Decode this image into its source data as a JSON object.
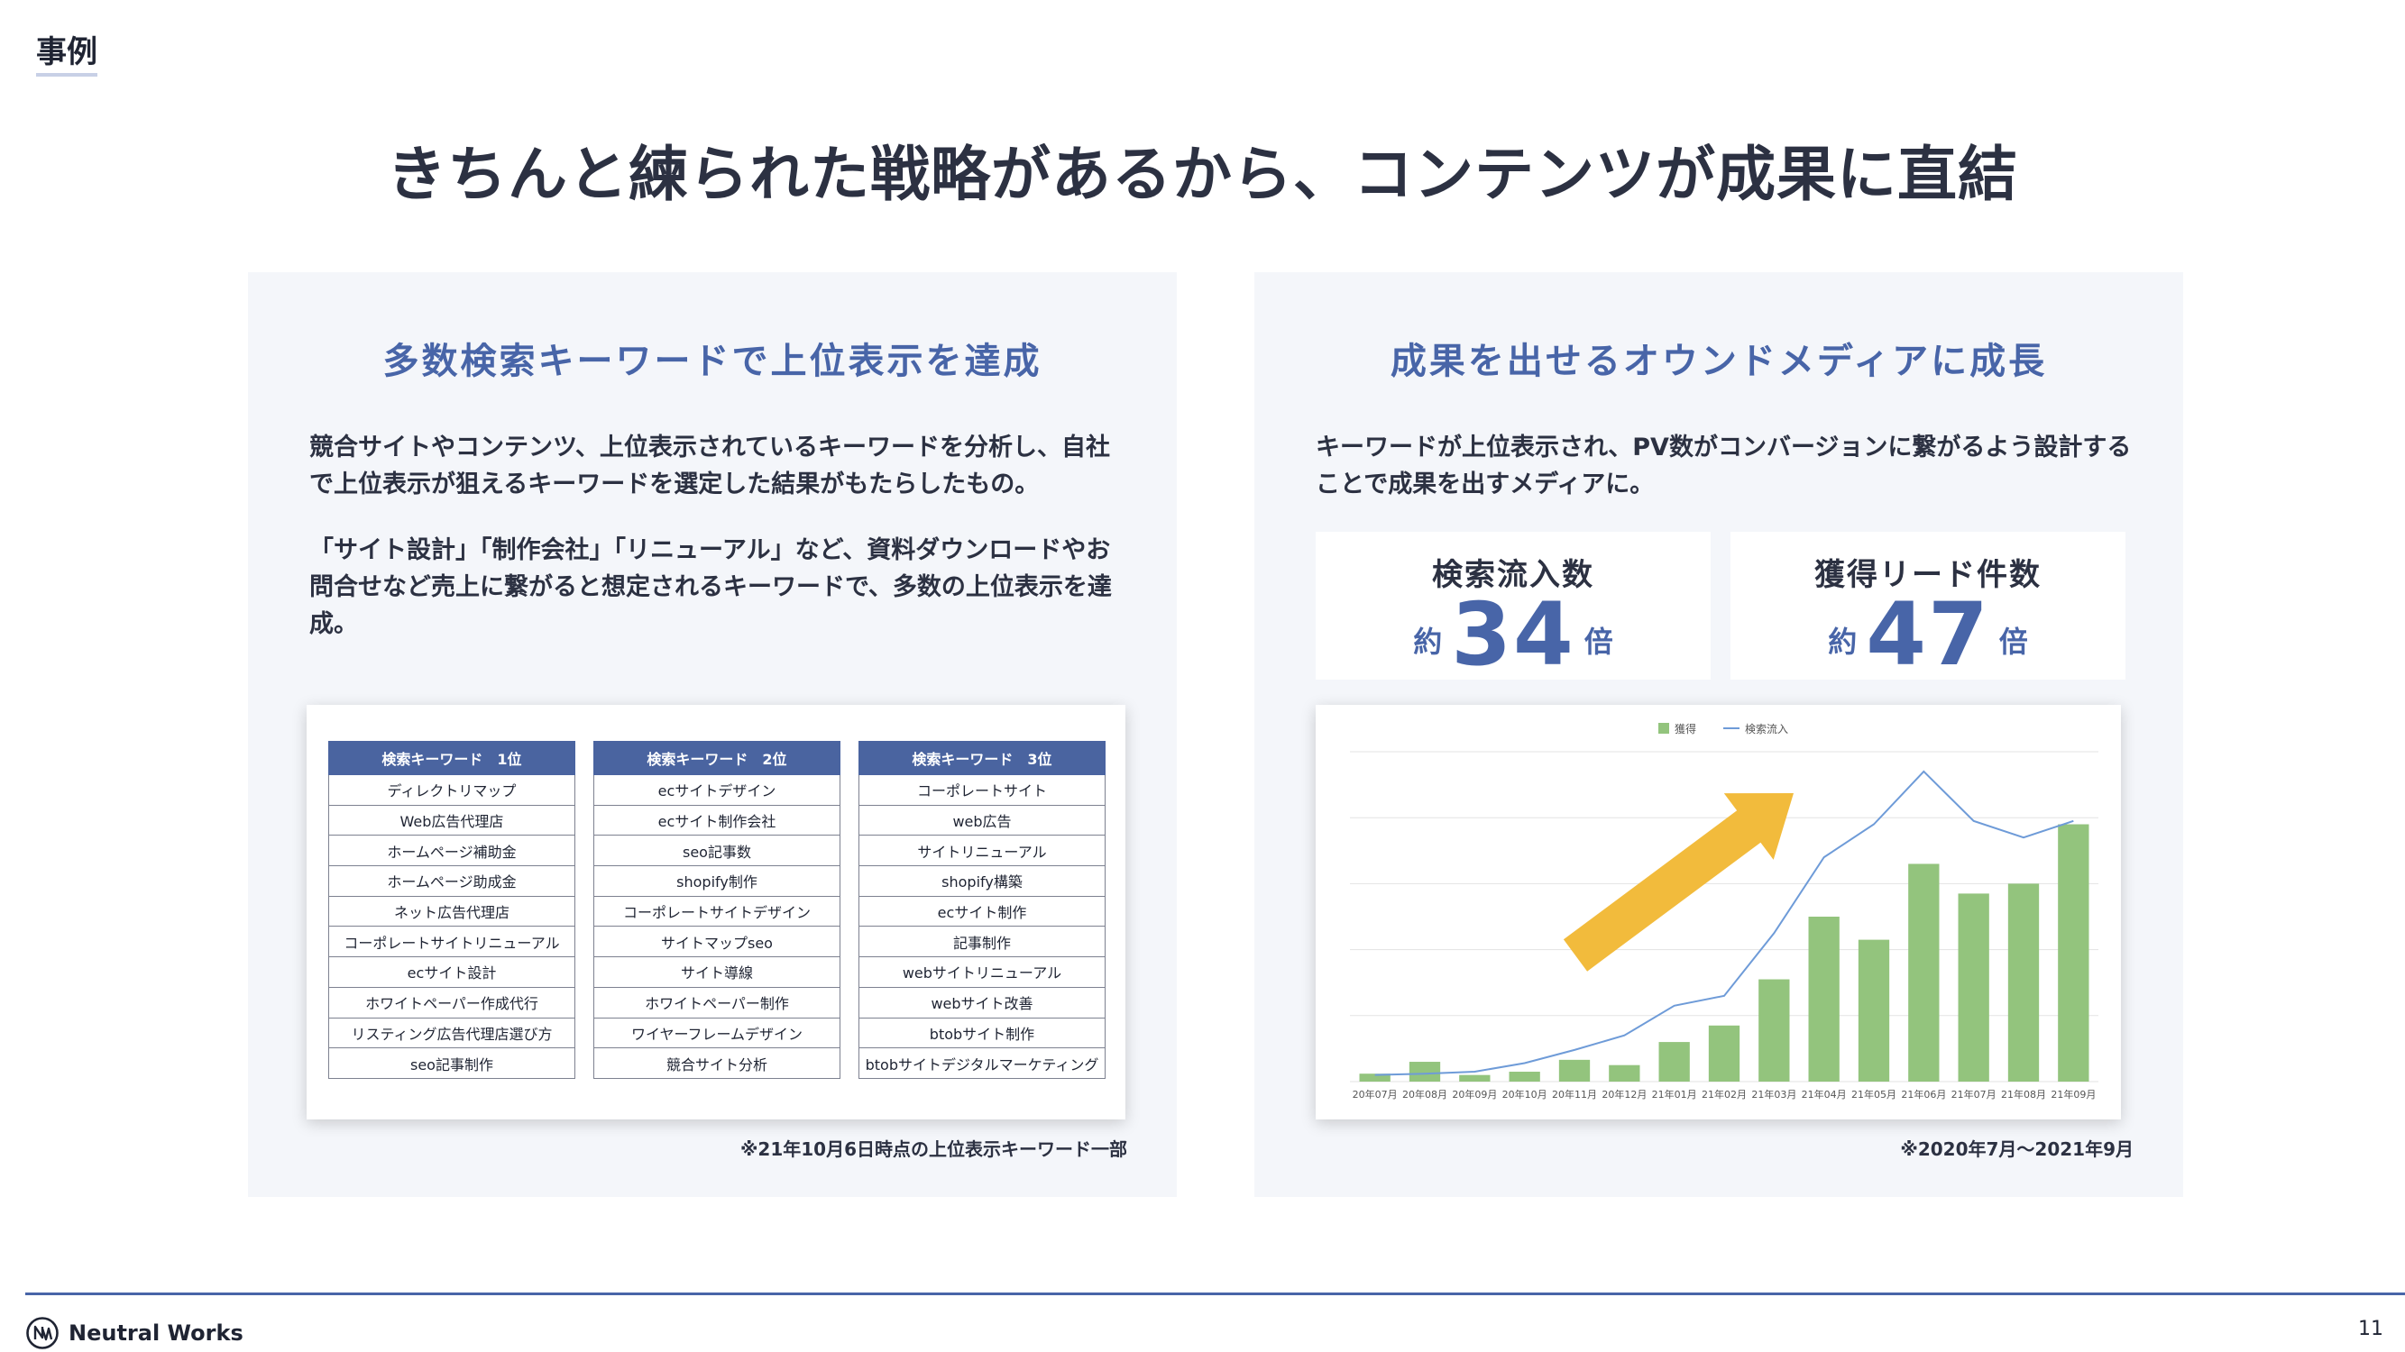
{
  "section_tag": "事例",
  "headline": "きちんと練られた戦略があるから、コンテンツが成果に直結",
  "left_panel": {
    "title": "多数検索キーワードで上位表示を達成",
    "desc_a": "競合サイトやコンテンツ、上位表示されているキーワードを分析し、自社で上位表示が狙えるキーワードを選定した結果がもたらしたもの。",
    "desc_b": "「サイト設計」「制作会社」「リニューアル」など、資料ダウンロードやお問合せなど売上に繋がると想定されるキーワードで、多数の上位表示を達成。",
    "tables": [
      {
        "header": "検索キーワード　1位",
        "rows": [
          "ディレクトリマップ",
          "Web広告代理店",
          "ホームページ補助金",
          "ホームページ助成金",
          "ネット広告代理店",
          "コーポレートサイトリニューアル",
          "ecサイト設計",
          "ホワイトペーパー作成代行",
          "リスティング広告代理店選び方",
          "seo記事制作"
        ]
      },
      {
        "header": "検索キーワード　2位",
        "rows": [
          "ecサイトデザイン",
          "ecサイト制作会社",
          "seo記事数",
          "shopify制作",
          "コーポレートサイトデザイン",
          "サイトマップseo",
          "サイト導線",
          "ホワイトペーパー制作",
          "ワイヤーフレームデザイン",
          "競合サイト分析"
        ]
      },
      {
        "header": "検索キーワード　3位",
        "rows": [
          "コーポレートサイト",
          "web広告",
          "サイトリニューアル",
          "shopify構築",
          "ecサイト制作",
          "記事制作",
          "webサイトリニューアル",
          "webサイト改善",
          "btobサイト制作",
          "btobサイトデジタルマーケティング"
        ]
      }
    ],
    "note": "※21年10月6日時点の上位表示キーワード一部"
  },
  "right_panel": {
    "title": "成果を出せるオウンドメディアに成長",
    "desc": "キーワードが上位表示され、PV数がコンバージョンに繋がるよう設計することで成果を出すメディアに。",
    "stats": [
      {
        "label": "検索流入数",
        "prefix": "約",
        "value": "34",
        "suffix": "倍"
      },
      {
        "label": "獲得リード件数",
        "prefix": "約",
        "value": "47",
        "suffix": "倍"
      }
    ],
    "note": "※2020年7月〜2021年9月"
  },
  "chart_data": {
    "type": "bar",
    "categories": [
      "20年07月",
      "20年08月",
      "20年09月",
      "20年10月",
      "20年11月",
      "20年12月",
      "21年01月",
      "21年02月",
      "21年03月",
      "21年04月",
      "21年05月",
      "21年06月",
      "21年07月",
      "21年08月",
      "21年09月"
    ],
    "series": [
      {
        "name": "獲得",
        "kind": "bar",
        "color": "#93c47d",
        "values": [
          1.2,
          3.0,
          1.0,
          1.5,
          3.3,
          2.5,
          6.0,
          8.5,
          15.5,
          25.0,
          21.5,
          33.0,
          28.5,
          30.0,
          39.0
        ]
      },
      {
        "name": "検索流入",
        "kind": "line",
        "color": "#6e9bd8",
        "values": [
          1.0,
          1.2,
          1.5,
          2.8,
          4.8,
          7.0,
          11.5,
          13.0,
          22.5,
          34.0,
          39.0,
          47.0,
          39.5,
          37.0,
          39.5
        ]
      }
    ],
    "ylim": [
      0,
      50
    ],
    "grid": true,
    "legend": "top-center",
    "arrow_color": "#f2bb3c"
  },
  "footer": {
    "logo_text": "Neutral Works",
    "page_number": "11"
  }
}
